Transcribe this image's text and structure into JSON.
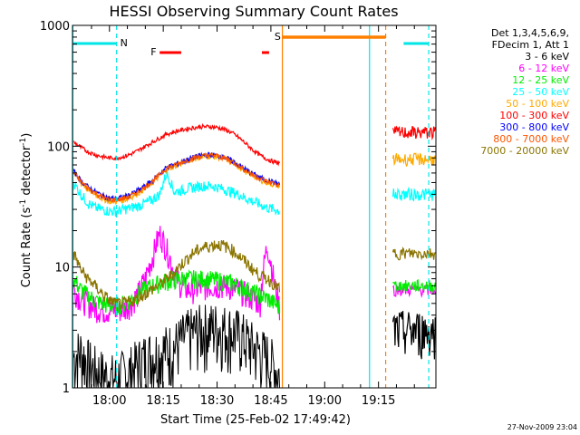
{
  "chart_data": {
    "type": "line",
    "title": "HESSI Observing Summary Count Rates",
    "xlabel": "Start Time (25-Feb-02 17:49:42)",
    "ylabel": "Count Rate (s",
    "ylabel_sup1": "-1",
    "ylabel_mid": " detector",
    "ylabel_sup2": "-1",
    "ylabel_end": ")",
    "yscale": "log",
    "ylim": [
      1,
      1000
    ],
    "xlim_min": [
      -10.3,
      91
    ],
    "x_ticks": [
      {
        "min": 0,
        "label": "18:00"
      },
      {
        "min": 15,
        "label": "18:15"
      },
      {
        "min": 30,
        "label": "18:30"
      },
      {
        "min": 45,
        "label": "18:45"
      },
      {
        "min": 60,
        "label": "19:00"
      },
      {
        "min": 75,
        "label": "19:15"
      }
    ],
    "y_ticks": [
      {
        "value": 1,
        "label": "1"
      },
      {
        "value": 10,
        "label": "10"
      },
      {
        "value": 100,
        "label": "100"
      },
      {
        "value": 1000,
        "label": "1000"
      }
    ],
    "legend_header": [
      "Det 1,3,4,5,6,9,",
      "FDecim 1, Att 1"
    ],
    "legend_position": "right",
    "series": [
      {
        "name": "3 - 6 keV",
        "color": "#000000",
        "x": [
          -10,
          -8,
          -6,
          -4,
          -2,
          0,
          2,
          4,
          6,
          8,
          10,
          12,
          14,
          16,
          18,
          20,
          22,
          24,
          26,
          28,
          30,
          32,
          34,
          36,
          38,
          40,
          42,
          44,
          46,
          47.5
        ],
        "values": [
          1.8,
          2.0,
          1.6,
          1.4,
          1.3,
          1.2,
          1.2,
          1.3,
          1.4,
          1.6,
          1.8,
          1.9,
          2.0,
          2.1,
          2.2,
          2.5,
          2.8,
          3.0,
          3.1,
          3.2,
          3.2,
          3.1,
          3.0,
          2.8,
          2.5,
          2.2,
          2.0,
          1.8,
          1.5,
          1.3
        ]
      },
      {
        "name": "6 - 12 keV",
        "color": "#ff00ff",
        "x": [
          -10,
          -8,
          -6,
          -4,
          -2,
          0,
          2,
          4,
          6,
          8,
          10,
          12,
          14,
          16,
          18,
          20,
          22,
          24,
          26,
          28,
          30,
          32,
          34,
          36,
          38,
          40,
          42,
          44,
          46,
          47.5
        ],
        "values": [
          6.5,
          5.5,
          5.0,
          4.6,
          4.4,
          4.4,
          4.4,
          4.5,
          5.0,
          6.0,
          8.0,
          12,
          19,
          14,
          9.0,
          7.0,
          6.5,
          6.6,
          6.8,
          7.0,
          7.0,
          7.0,
          6.8,
          6.5,
          6.0,
          5.5,
          5.0,
          15,
          7.0,
          4.5
        ]
      },
      {
        "name": "12 - 25 keV",
        "color": "#00ee00",
        "x": [
          -10,
          -8,
          -6,
          -4,
          -2,
          0,
          2,
          4,
          6,
          8,
          10,
          12,
          14,
          16,
          18,
          20,
          22,
          24,
          26,
          28,
          30,
          32,
          34,
          36,
          38,
          40,
          42,
          44,
          46,
          47.5
        ],
        "values": [
          8.0,
          6.5,
          5.8,
          5.3,
          5.0,
          4.8,
          4.8,
          5.0,
          5.4,
          6.0,
          6.6,
          7.0,
          7.4,
          7.6,
          7.8,
          8.0,
          8.0,
          8.0,
          8.0,
          7.9,
          7.8,
          7.6,
          7.4,
          7.0,
          6.6,
          6.2,
          5.8,
          5.5,
          5.0,
          4.6
        ]
      },
      {
        "name": "25 - 50 keV",
        "color": "#00ffff",
        "x": [
          -10,
          -8,
          -6,
          -4,
          -2,
          0,
          2,
          4,
          6,
          8,
          10,
          12,
          14,
          16,
          18,
          20,
          22,
          24,
          26,
          28,
          30,
          32,
          34,
          36,
          38,
          40,
          42,
          44,
          46,
          47.5
        ],
        "values": [
          50,
          40,
          34,
          31,
          30,
          29,
          29,
          30,
          31,
          32,
          34,
          36,
          40,
          60,
          42,
          43,
          45,
          46,
          47,
          47,
          46,
          44,
          42,
          40,
          37,
          35,
          33,
          31,
          30,
          29
        ]
      },
      {
        "name": "50 - 100 keV",
        "color": "#ffaa00",
        "x": [
          -10,
          -8,
          -6,
          -4,
          -2,
          0,
          2,
          4,
          6,
          8,
          10,
          12,
          14,
          16,
          18,
          20,
          22,
          24,
          26,
          28,
          30,
          32,
          34,
          36,
          38,
          40,
          42,
          44,
          46,
          47.5
        ],
        "values": [
          60,
          50,
          44,
          40,
          37,
          35,
          35,
          36,
          38,
          41,
          45,
          50,
          57,
          65,
          68,
          72,
          76,
          80,
          82,
          83,
          82,
          79,
          74,
          68,
          62,
          57,
          53,
          50,
          48,
          47
        ]
      },
      {
        "name": "100 - 300 keV",
        "color": "#ff0000",
        "x": [
          -10,
          -8,
          -6,
          -4,
          -2,
          0,
          2,
          4,
          6,
          8,
          10,
          12,
          14,
          16,
          18,
          20,
          22,
          24,
          26,
          28,
          30,
          32,
          34,
          36,
          38,
          40,
          42,
          44,
          46,
          47.5
        ],
        "values": [
          108,
          98,
          90,
          85,
          82,
          80,
          80,
          82,
          86,
          92,
          100,
          108,
          117,
          126,
          131,
          136,
          140,
          143,
          145,
          145,
          143,
          138,
          130,
          118,
          105,
          93,
          84,
          78,
          74,
          72
        ]
      },
      {
        "name": "300 - 800 keV",
        "color": "#0000ff",
        "x": [
          -10,
          -8,
          -6,
          -4,
          -2,
          0,
          2,
          4,
          6,
          8,
          10,
          12,
          14,
          16,
          18,
          20,
          22,
          24,
          26,
          28,
          30,
          32,
          34,
          36,
          38,
          40,
          42,
          44,
          46,
          47.5
        ],
        "values": [
          62,
          52,
          46,
          42,
          39,
          37,
          37,
          38,
          40,
          43,
          47,
          52,
          59,
          67,
          70,
          74,
          78,
          82,
          84,
          85,
          84,
          81,
          76,
          70,
          64,
          59,
          55,
          52,
          50,
          48
        ]
      },
      {
        "name": "800 - 7000 keV",
        "color": "#ff5500",
        "x": [
          -10,
          -8,
          -6,
          -4,
          -2,
          0,
          2,
          4,
          6,
          8,
          10,
          12,
          14,
          16,
          18,
          20,
          22,
          24,
          26,
          28,
          30,
          32,
          34,
          36,
          38,
          40,
          42,
          44,
          46,
          47.5
        ],
        "values": [
          61,
          51,
          45,
          41,
          38,
          36,
          36,
          37,
          39,
          42,
          46,
          51,
          58,
          66,
          69,
          73,
          77,
          81,
          83,
          84,
          83,
          80,
          75,
          69,
          63,
          58,
          54,
          51,
          49,
          47
        ]
      },
      {
        "name": "7000 - 20000 keV",
        "color": "#8b7500",
        "x": [
          -10,
          -8,
          -6,
          -4,
          -2,
          0,
          2,
          4,
          6,
          8,
          10,
          12,
          14,
          16,
          18,
          20,
          22,
          24,
          26,
          28,
          30,
          32,
          34,
          36,
          38,
          40,
          42,
          44,
          46,
          47.5
        ],
        "values": [
          13,
          9.5,
          8.0,
          7.0,
          6.0,
          5.3,
          5.0,
          5.0,
          5.2,
          5.6,
          6.0,
          6.6,
          7.2,
          8.0,
          9.0,
          10.5,
          12,
          13.5,
          14.5,
          15,
          15.5,
          15,
          14,
          12.5,
          11,
          9.5,
          8.5,
          8.0,
          7.2,
          6.5
        ]
      }
    ],
    "post_gap": {
      "x": [
        79,
        91
      ],
      "values": [
        {
          "color": "#000000",
          "v": 3.0
        },
        {
          "color": "#ff00ff",
          "v": 6.5
        },
        {
          "color": "#00ee00",
          "v": 7.0
        },
        {
          "color": "#00ffff",
          "v": 40
        },
        {
          "color": "#ffaa00",
          "v": 78
        },
        {
          "color": "#ff0000",
          "v": 130
        },
        {
          "color": "#8b7500",
          "v": 13
        }
      ]
    },
    "annotations": [
      {
        "label": "N",
        "color": "#00e5e5"
      },
      {
        "label": "F",
        "color": "#ff0000"
      },
      {
        "label": "S",
        "color": "#ff8000"
      }
    ],
    "timestamp": "27-Nov-2009 23:04"
  }
}
